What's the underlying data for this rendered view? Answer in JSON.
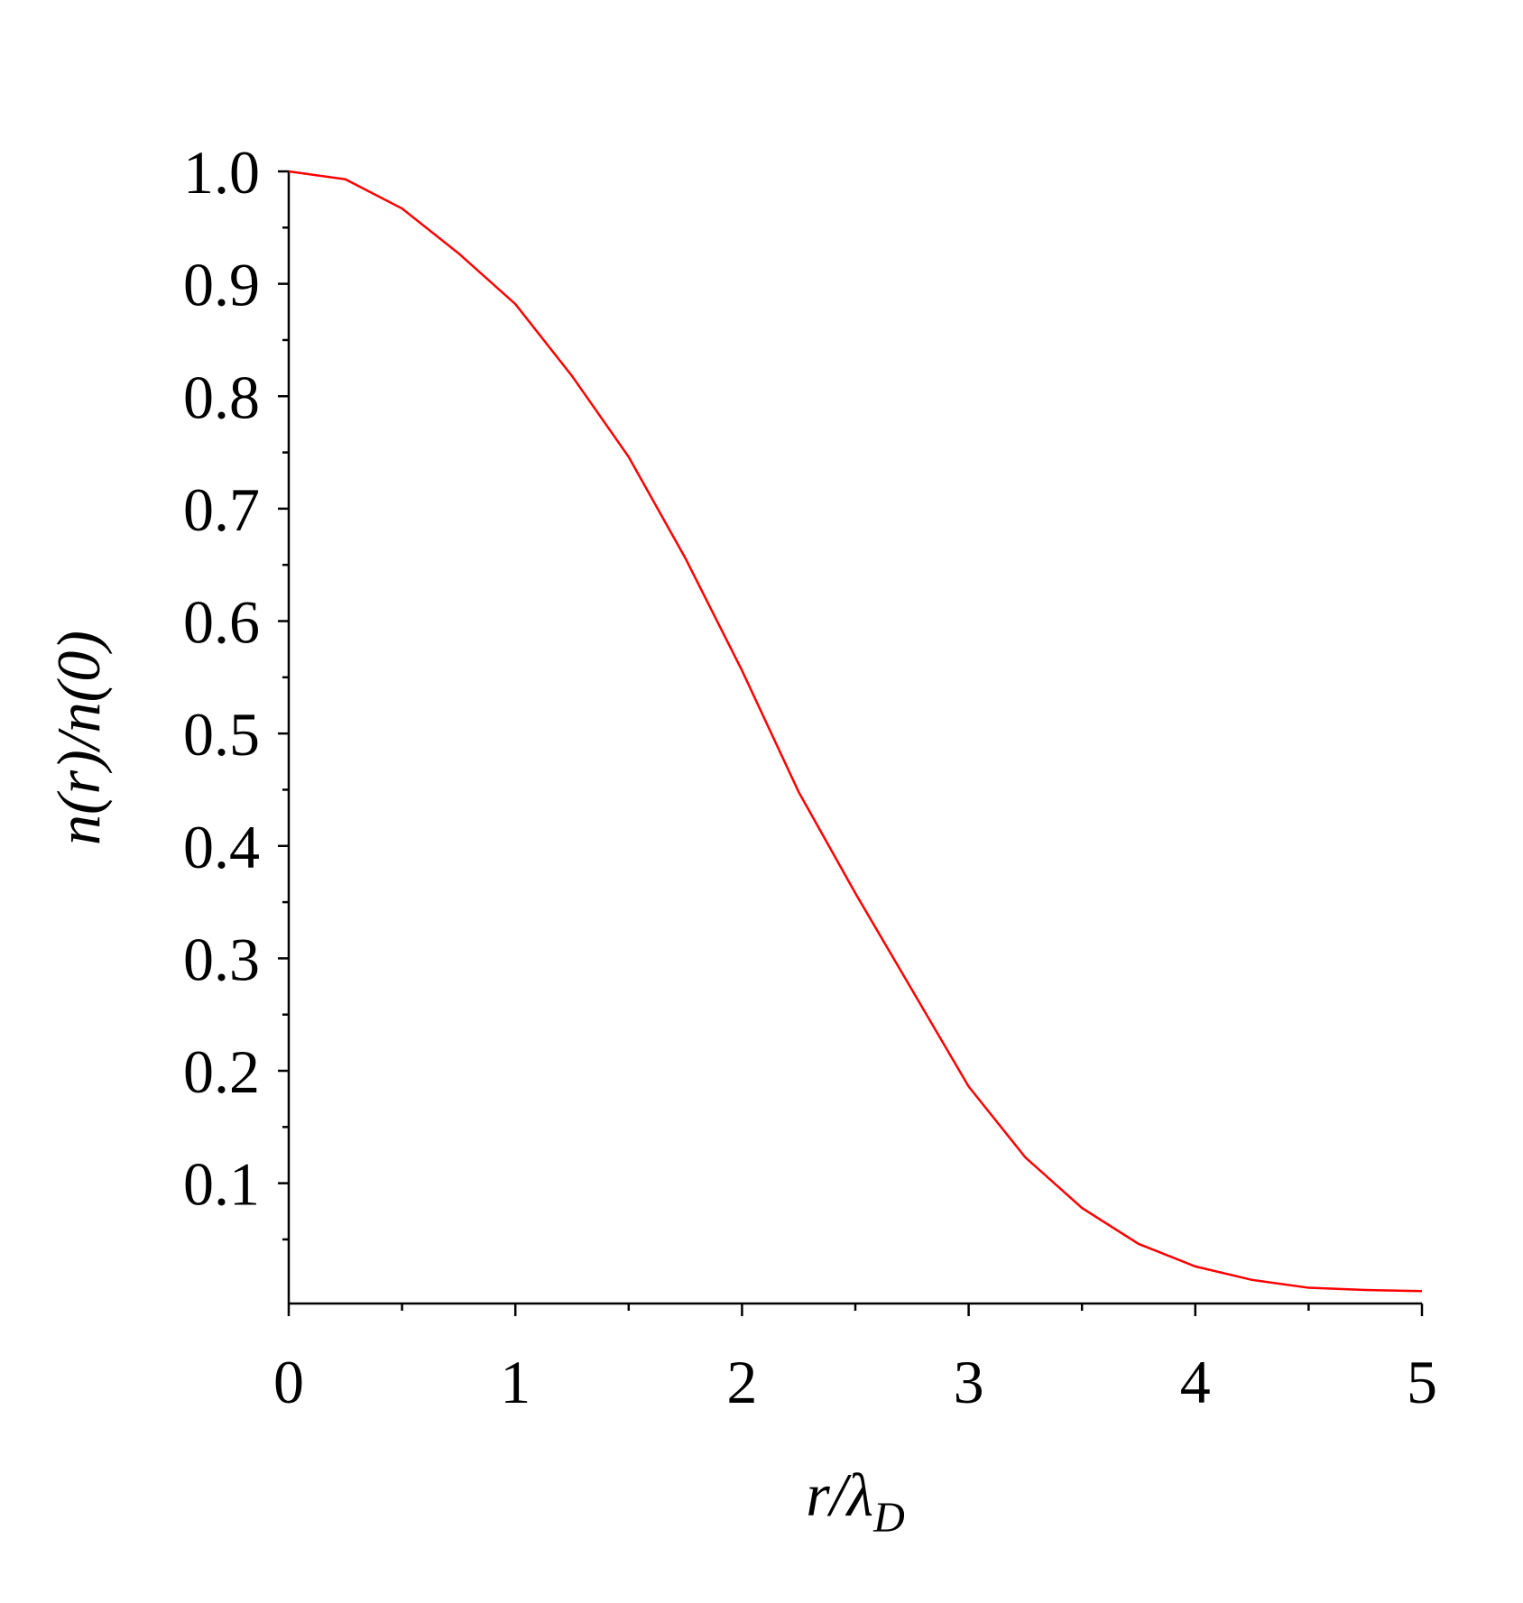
{
  "chart_data": {
    "type": "line",
    "xlabel": "r/λ",
    "xlabel_subscript": "D",
    "ylabel": "n(r)/n(0)",
    "x": [
      0,
      0.25,
      0.5,
      0.75,
      1,
      1.25,
      1.5,
      1.75,
      2,
      2.25,
      2.5,
      2.75,
      3,
      3.25,
      3.5,
      3.75,
      4,
      4.25,
      4.5,
      4.75,
      5
    ],
    "series": [
      {
        "color": "#ff0000",
        "values": [
          1.0,
          0.993,
          0.967,
          0.927,
          0.882,
          0.818,
          0.746,
          0.656,
          0.556,
          0.448,
          0.358,
          0.272,
          0.186,
          0.123,
          0.078,
          0.046,
          0.026,
          0.014,
          0.007,
          0.005,
          0.004
        ]
      }
    ],
    "xlim": [
      0,
      5
    ],
    "xticks": [
      0,
      1,
      2,
      3,
      4,
      5
    ],
    "xminorticks": [
      0.5,
      1.5,
      2.5,
      3.5,
      4.5
    ],
    "ylim": [
      -0.007,
      1.0
    ],
    "yticks": [
      0.1,
      0.2,
      0.3,
      0.4,
      0.5,
      0.6,
      0.7,
      0.8,
      0.9,
      {
        "value": 1.0,
        "label": "1.0"
      }
    ],
    "yminorticks": [
      0.05,
      0.15,
      0.25,
      0.35,
      0.45,
      0.55,
      0.65,
      0.75,
      0.85,
      0.95
    ],
    "grid": false
  }
}
